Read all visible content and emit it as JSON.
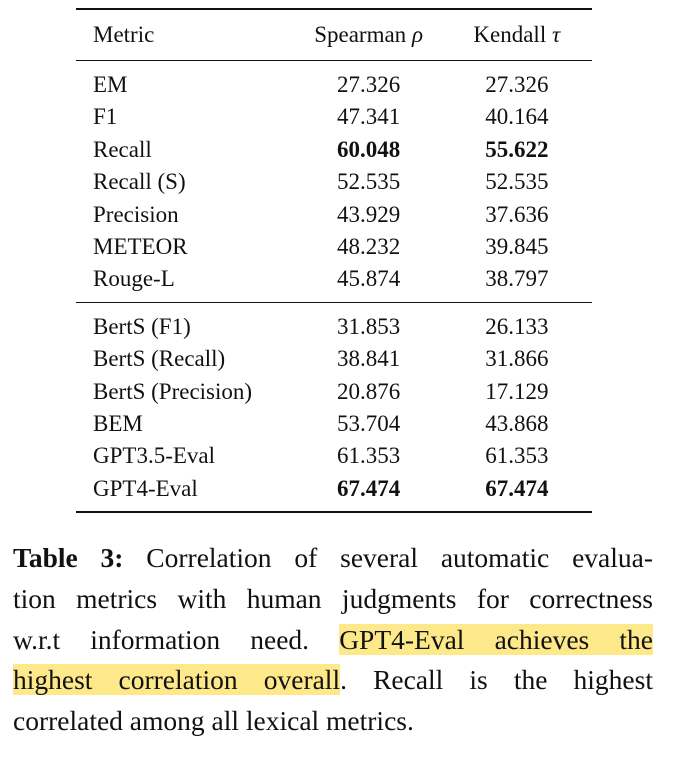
{
  "table": {
    "headers": {
      "metric": "Metric",
      "spearman_text": "Spearman",
      "spearman_symbol": "ρ",
      "kendall_text": "Kendall",
      "kendall_symbol": "τ"
    },
    "group1": [
      {
        "metric": "EM",
        "spearman": "27.326",
        "kendall": "27.326",
        "bold_spearman": false,
        "bold_kendall": false
      },
      {
        "metric": "F1",
        "spearman": "47.341",
        "kendall": "40.164",
        "bold_spearman": false,
        "bold_kendall": false
      },
      {
        "metric": "Recall",
        "spearman": "60.048",
        "kendall": "55.622",
        "bold_spearman": true,
        "bold_kendall": true
      },
      {
        "metric": "Recall (S)",
        "spearman": "52.535",
        "kendall": "52.535",
        "bold_spearman": false,
        "bold_kendall": false
      },
      {
        "metric": "Precision",
        "spearman": "43.929",
        "kendall": "37.636",
        "bold_spearman": false,
        "bold_kendall": false
      },
      {
        "metric": "METEOR",
        "spearman": "48.232",
        "kendall": "39.845",
        "bold_spearman": false,
        "bold_kendall": false
      },
      {
        "metric": "Rouge-L",
        "spearman": "45.874",
        "kendall": "38.797",
        "bold_spearman": false,
        "bold_kendall": false
      }
    ],
    "group2": [
      {
        "metric": "BertS (F1)",
        "spearman": "31.853",
        "kendall": "26.133",
        "bold_spearman": false,
        "bold_kendall": false
      },
      {
        "metric": "BertS (Recall)",
        "spearman": "38.841",
        "kendall": "31.866",
        "bold_spearman": false,
        "bold_kendall": false
      },
      {
        "metric": "BertS (Precision)",
        "spearman": "20.876",
        "kendall": "17.129",
        "bold_spearman": false,
        "bold_kendall": false
      },
      {
        "metric": "BEM",
        "spearman": "53.704",
        "kendall": "43.868",
        "bold_spearman": false,
        "bold_kendall": false
      },
      {
        "metric": "GPT3.5-Eval",
        "spearman": "61.353",
        "kendall": "61.353",
        "bold_spearman": false,
        "bold_kendall": false
      },
      {
        "metric": "GPT4-Eval",
        "spearman": "67.474",
        "kendall": "67.474",
        "bold_spearman": true,
        "bold_kendall": true
      }
    ]
  },
  "caption": {
    "label": "Table 3:",
    "line1": "Correlation of several automatic evalua-",
    "line2": "tion metrics with human judgments for correctness",
    "line3_plain": "w.r.t information need.",
    "line3_highlight": "GPT4-Eval achieves the",
    "line4_highlight": "highest correlation overall",
    "line4_plain": ". Recall is the highest",
    "line5": "correlated among all lexical metrics.",
    "highlight_color": "#fde88a"
  }
}
